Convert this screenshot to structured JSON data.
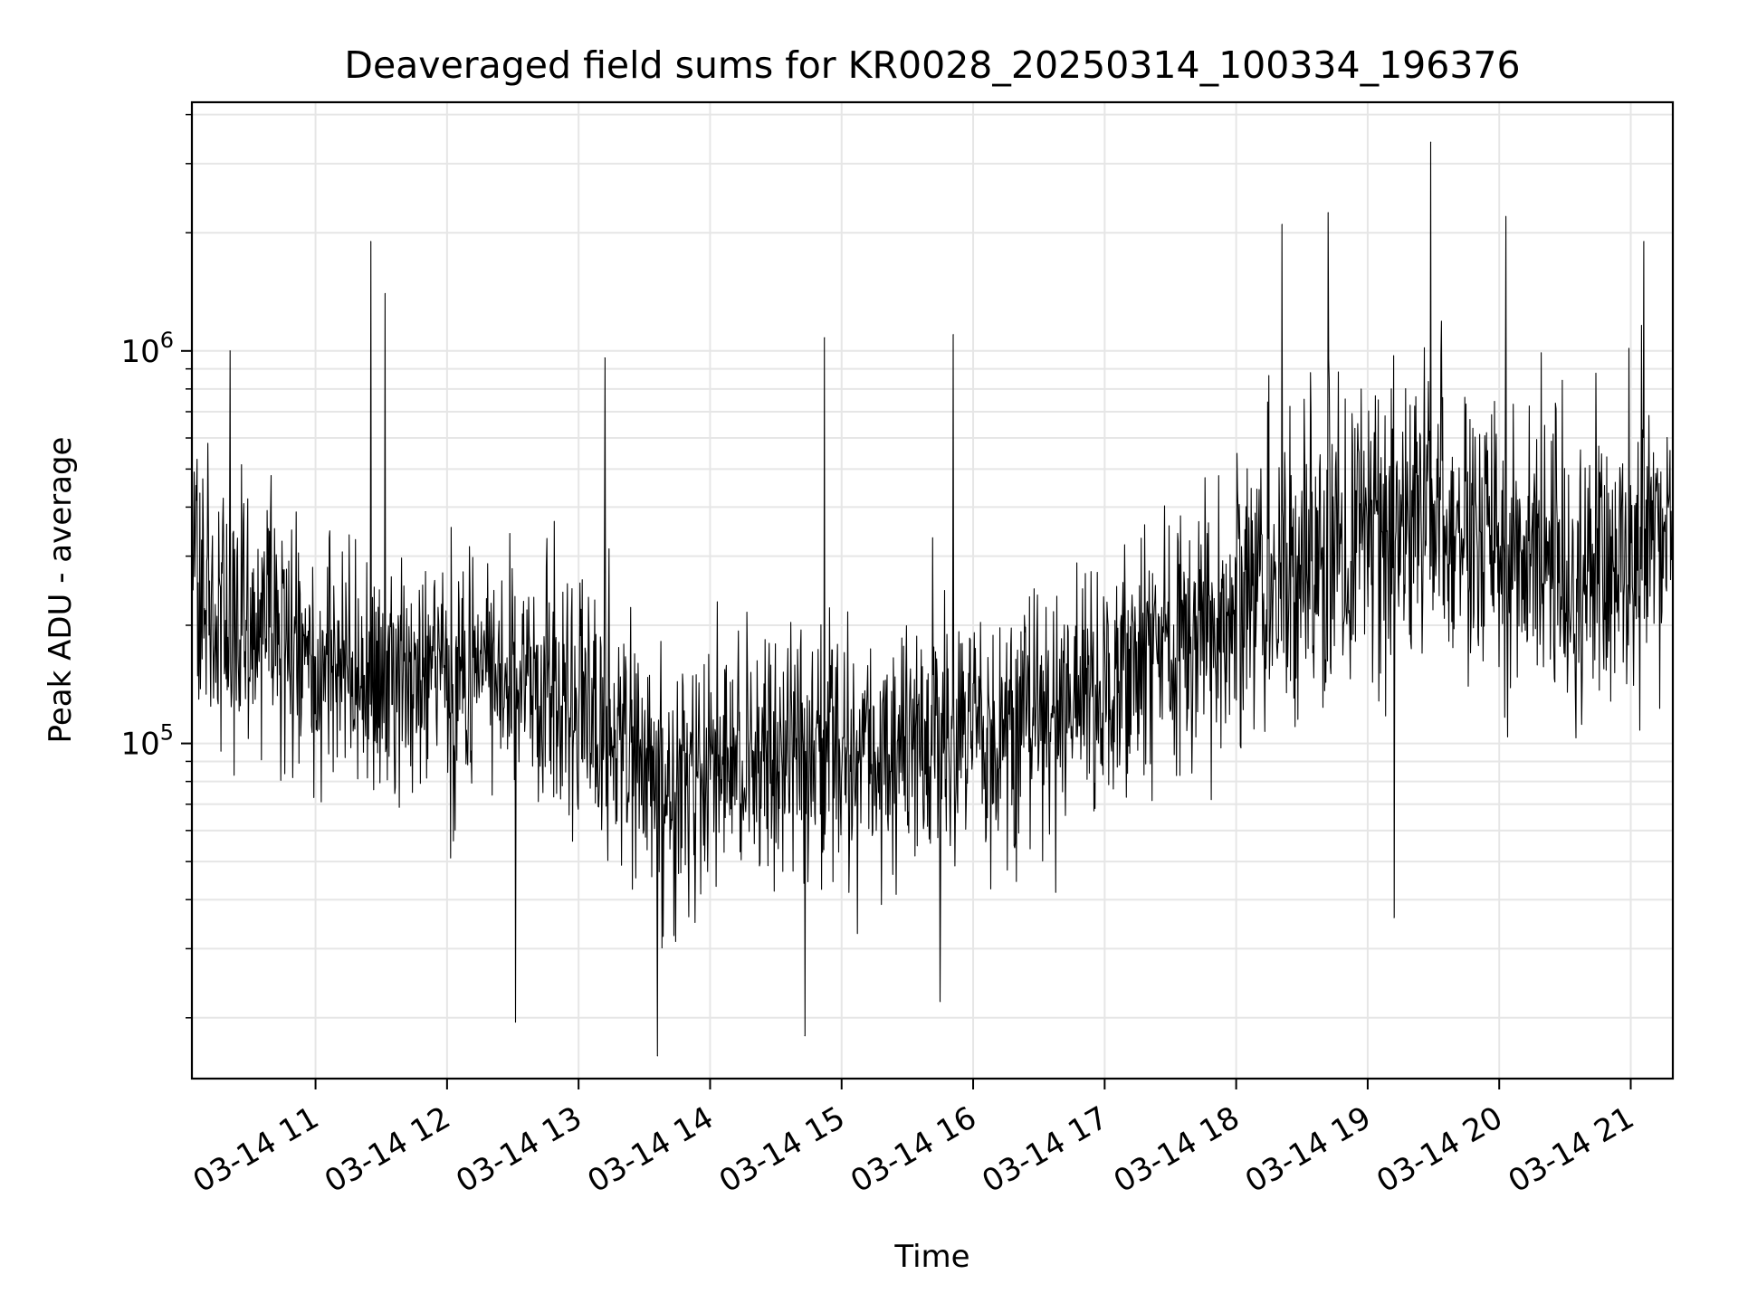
{
  "chart_data": {
    "type": "line",
    "title": "Deaveraged field sums for KR0028_20250314_100334_196376",
    "xlabel": "Time",
    "ylabel": "Peak ADU - average",
    "yscale": "log",
    "ylim": [
      14000,
      4300000
    ],
    "xlim_hours": [
      10.06,
      21.32
    ],
    "grid": true,
    "grid_color": "#e6e6e6",
    "line_color": "#000000",
    "x_ticks": [
      {
        "hour": 11,
        "label": "03-14 11"
      },
      {
        "hour": 12,
        "label": "03-14 12"
      },
      {
        "hour": 13,
        "label": "03-14 13"
      },
      {
        "hour": 14,
        "label": "03-14 14"
      },
      {
        "hour": 15,
        "label": "03-14 15"
      },
      {
        "hour": 16,
        "label": "03-14 16"
      },
      {
        "hour": 17,
        "label": "03-14 17"
      },
      {
        "hour": 18,
        "label": "03-14 18"
      },
      {
        "hour": 19,
        "label": "03-14 19"
      },
      {
        "hour": 20,
        "label": "03-14 20"
      },
      {
        "hour": 21,
        "label": "03-14 21"
      }
    ],
    "y_ticks": [
      {
        "value": 100000,
        "base": "10",
        "exp": "5"
      },
      {
        "value": 1000000,
        "base": "10",
        "exp": "6"
      }
    ],
    "series": [
      {
        "name": "Deaveraged field sum",
        "envelope": {
          "hours": [
            10.06,
            10.5,
            11.0,
            11.5,
            12.0,
            12.5,
            13.0,
            13.4,
            13.7,
            14.0,
            14.5,
            15.0,
            15.5,
            16.0,
            16.5,
            17.0,
            17.5,
            18.0,
            18.5,
            19.0,
            19.5,
            20.0,
            20.5,
            21.0,
            21.32
          ],
          "median": [
            230000,
            200000,
            170000,
            150000,
            155000,
            150000,
            130000,
            95000,
            70000,
            90000,
            95000,
            95000,
            95000,
            100000,
            110000,
            140000,
            170000,
            210000,
            280000,
            340000,
            360000,
            330000,
            280000,
            300000,
            350000
          ]
        },
        "notable_peaks": [
          {
            "hour": 10.35,
            "value": 1000000
          },
          {
            "hour": 11.42,
            "value": 1900000
          },
          {
            "hour": 11.53,
            "value": 1400000
          },
          {
            "hour": 13.2,
            "value": 960000
          },
          {
            "hour": 14.87,
            "value": 1080000
          },
          {
            "hour": 15.85,
            "value": 1100000
          },
          {
            "hour": 18.35,
            "value": 2100000
          },
          {
            "hour": 18.7,
            "value": 2250000
          },
          {
            "hour": 19.48,
            "value": 3400000
          },
          {
            "hour": 20.05,
            "value": 2200000
          },
          {
            "hour": 21.1,
            "value": 1900000
          }
        ],
        "notable_troughs": [
          {
            "hour": 12.52,
            "value": 19500
          },
          {
            "hour": 13.6,
            "value": 16000
          },
          {
            "hour": 14.72,
            "value": 18000
          },
          {
            "hour": 15.75,
            "value": 22000
          },
          {
            "hour": 19.2,
            "value": 36000
          }
        ]
      }
    ]
  }
}
